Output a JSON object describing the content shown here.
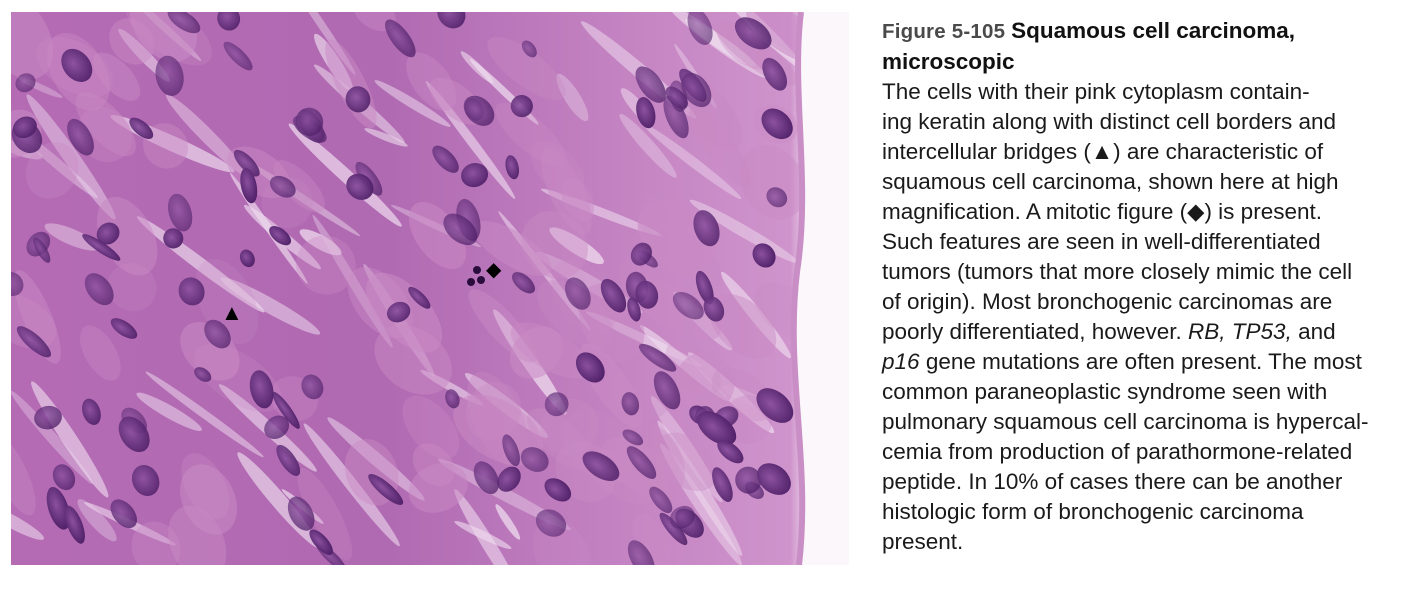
{
  "figure": {
    "number": "Figure 5-105",
    "title_line1": "Squamous cell carcinoma,",
    "title_line2": "microscopic",
    "body_lines": [
      "The cells with their pink cytoplasm contain-",
      "ing keratin along with distinct cell borders and",
      "intercellular bridges (▲) are characteristic of",
      "squamous cell carcinoma, shown here at high",
      "magnification. A mitotic figure (◆) is present.",
      "Such features are seen in well-differentiated",
      "tumors (tumors that more closely mimic the cell",
      "of origin). Most bronchogenic carcinomas are",
      "poorly differentiated, however. ",
      "gene mutations are often present. The most",
      "common paraneoplastic syndrome seen with",
      "pulmonary squamous cell carcinoma is hypercal-",
      "cemia from production of parathormone-related",
      "peptide. In 10% of cases there can be another",
      "histologic form of bronchogenic carcinoma",
      "present."
    ],
    "italic_genes_a": "RB, TP53,",
    "and_word": " and",
    "italic_gene_b": "p16",
    "colors": {
      "tissue_base": "#b86fb5",
      "nucleus": "#5b2a78",
      "cytoplasm": "#c98ac4",
      "gap": "#efdcef"
    },
    "markers": {
      "triangle": "▲",
      "diamond": "◆"
    }
  }
}
